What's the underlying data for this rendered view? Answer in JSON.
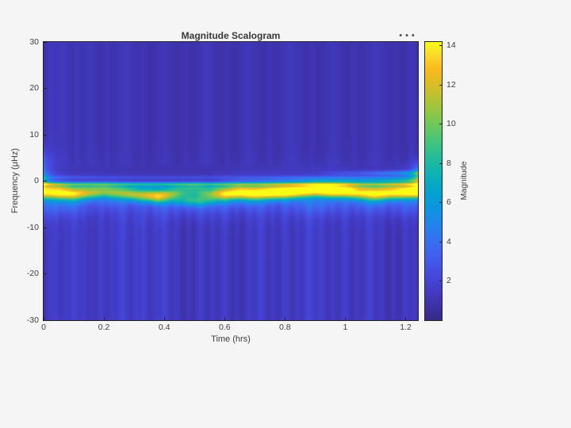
{
  "figure": {
    "background": "#f5f5f5",
    "toolbar": {
      "options_glyph": "•••"
    }
  },
  "chart_data": {
    "type": "heatmap",
    "title": "Magnitude Scalogram",
    "xlabel": "Time (hrs)",
    "ylabel": "Frequency (μHz)",
    "x_range": [
      0,
      1.24
    ],
    "y_range": [
      -30,
      30
    ],
    "x_ticks": [
      0,
      0.2,
      0.4,
      0.6,
      0.8,
      1,
      1.2
    ],
    "x_tick_labels": [
      "0",
      "0.2",
      "0.4",
      "0.6",
      "0.8",
      "1",
      "1.2"
    ],
    "y_ticks": [
      30,
      20,
      10,
      0,
      -10,
      -20,
      -30
    ],
    "y_tick_labels": [
      "30",
      "20",
      "10",
      "0",
      "-10",
      "-20",
      "-30"
    ],
    "grid": false,
    "description": "CWT magnitude scalogram: dark indigo background with faint vertical streaks; a bright wavy yellow-green ridge near -2.5 uHz whose magnitude varies 6-14 over time, a persistent cyan line near -0.7 uHz, extra cyan lines near +0.2 and +1.7 uHz appearing toward the right edge, teal edge-effect glow at t=0 and a bright blob at the right edge.",
    "colorbar": {
      "label": "Magnitude",
      "min": 0,
      "max": 14.2,
      "ticks": [
        2,
        4,
        6,
        8,
        10,
        12,
        14
      ],
      "colormap": "parula",
      "stops": [
        [
          0.0,
          "#352a87"
        ],
        [
          0.05,
          "#3d31a5"
        ],
        [
          0.1,
          "#423ac1"
        ],
        [
          0.15,
          "#4546d8"
        ],
        [
          0.2,
          "#4455e7"
        ],
        [
          0.25,
          "#3e65ef"
        ],
        [
          0.3,
          "#3176f0"
        ],
        [
          0.35,
          "#2186eb"
        ],
        [
          0.4,
          "#1094e1"
        ],
        [
          0.45,
          "#06a0d2"
        ],
        [
          0.5,
          "#08acbf"
        ],
        [
          0.55,
          "#16b6aa"
        ],
        [
          0.6,
          "#2cbe93"
        ],
        [
          0.65,
          "#4ac479"
        ],
        [
          0.7,
          "#6cc75d"
        ],
        [
          0.75,
          "#92c644"
        ],
        [
          0.8,
          "#b8c232"
        ],
        [
          0.85,
          "#dcbc28"
        ],
        [
          0.9,
          "#f9b91e"
        ],
        [
          0.93,
          "#fcc925"
        ],
        [
          0.96,
          "#fbde2c"
        ],
        [
          1.0,
          "#f9fb14"
        ]
      ]
    },
    "features": {
      "base": 0.72,
      "band": {
        "sigma": 1.0,
        "skirt": 0.15,
        "skirt_sigma": 3.0,
        "amp": [
          [
            0,
            11
          ],
          [
            0.05,
            12.5
          ],
          [
            0.1,
            11.5
          ],
          [
            0.15,
            9.5
          ],
          [
            0.2,
            8.5
          ],
          [
            0.26,
            9
          ],
          [
            0.32,
            9.5
          ],
          [
            0.38,
            11
          ],
          [
            0.42,
            8.5
          ],
          [
            0.46,
            6.5
          ],
          [
            0.5,
            6
          ],
          [
            0.55,
            7.5
          ],
          [
            0.6,
            11.5
          ],
          [
            0.65,
            12.5
          ],
          [
            0.7,
            13
          ],
          [
            0.75,
            13.5
          ],
          [
            0.8,
            14
          ],
          [
            0.85,
            13
          ],
          [
            0.9,
            12.5
          ],
          [
            0.95,
            13.8
          ],
          [
            1.0,
            13
          ],
          [
            1.05,
            11.5
          ],
          [
            1.1,
            12.5
          ],
          [
            1.15,
            12
          ],
          [
            1.2,
            12.8
          ],
          [
            1.24,
            14.2
          ]
        ],
        "center": [
          [
            0,
            -2.4
          ],
          [
            0.05,
            -2.5
          ],
          [
            0.1,
            -2.7
          ],
          [
            0.15,
            -2.5
          ],
          [
            0.2,
            -2.3
          ],
          [
            0.26,
            -2.6
          ],
          [
            0.32,
            -3.0
          ],
          [
            0.38,
            -3.2
          ],
          [
            0.42,
            -2.8
          ],
          [
            0.46,
            -2.3
          ],
          [
            0.5,
            -2.1
          ],
          [
            0.55,
            -2.6
          ],
          [
            0.6,
            -2.7
          ],
          [
            0.65,
            -2.5
          ],
          [
            0.7,
            -2.6
          ],
          [
            0.75,
            -2.5
          ],
          [
            0.8,
            -2.4
          ],
          [
            0.85,
            -2.2
          ],
          [
            0.9,
            -2.0
          ],
          [
            0.95,
            -2.1
          ],
          [
            1.0,
            -2.2
          ],
          [
            1.05,
            -2.5
          ],
          [
            1.1,
            -2.7
          ],
          [
            1.15,
            -2.5
          ],
          [
            1.2,
            -2.4
          ],
          [
            1.24,
            -2.3
          ]
        ]
      },
      "lower_arc": {
        "t": 0.5,
        "st": 0.055,
        "f": -4.2,
        "sf": 0.8,
        "amp": 5
      },
      "lines": [
        {
          "f": -0.7,
          "sigma": 0.3,
          "amp": [
            [
              0,
              7
            ],
            [
              0.1,
              6
            ],
            [
              0.25,
              5.6
            ],
            [
              0.4,
              6
            ],
            [
              0.5,
              5.6
            ],
            [
              0.6,
              6
            ],
            [
              0.75,
              6.2
            ],
            [
              0.9,
              6.4
            ],
            [
              1.0,
              6.6
            ],
            [
              1.1,
              7
            ],
            [
              1.24,
              7.4
            ]
          ]
        },
        {
          "f": -1.5,
          "sigma": 0.22,
          "amp": [
            [
              0,
              2.2
            ],
            [
              0.3,
              1.8
            ],
            [
              0.6,
              2.0
            ],
            [
              0.9,
              2.2
            ],
            [
              1.24,
              2.5
            ]
          ]
        },
        {
          "f": 0.15,
          "sigma": 0.32,
          "amp": [
            [
              0,
              0
            ],
            [
              0.55,
              0
            ],
            [
              0.8,
              1.8
            ],
            [
              1.0,
              3.4
            ],
            [
              1.24,
              5.6
            ]
          ]
        },
        {
          "f": 0.8,
          "sigma": 0.25,
          "amp": [
            [
              0,
              1.4
            ],
            [
              0.3,
              1.0
            ],
            [
              0.7,
              1.2
            ],
            [
              1.0,
              1.8
            ],
            [
              1.24,
              2.4
            ]
          ]
        },
        {
          "f": 1.7,
          "sigma": 0.38,
          "amp": [
            [
              0,
              0
            ],
            [
              0.9,
              0
            ],
            [
              1.05,
              1.6
            ],
            [
              1.24,
              4.4
            ]
          ]
        }
      ],
      "edges": {
        "left": {
          "tau": 0.022,
          "components": [
            [
              0.3,
              1.3,
              3.5
            ],
            [
              3.5,
              2.5,
              2.4
            ],
            [
              -5,
              2.5,
              1.5
            ]
          ]
        },
        "right": {
          "tau": 0.018,
          "components": [
            [
              0.9,
              1.4,
              3.5
            ],
            [
              2.3,
              1.8,
              2.0
            ]
          ]
        }
      },
      "texture": {
        "lower_mask": [
          3.2,
          5.0
        ],
        "upper_mask": [
          2.0,
          4.5
        ],
        "lower_streaks": [
          [
            0.015,
            0.7,
            0.01
          ],
          [
            0.04,
            1.0,
            0.012
          ],
          [
            0.07,
            0.6,
            0.008
          ],
          [
            0.1,
            1.2,
            0.015
          ],
          [
            0.135,
            0.8,
            0.01
          ],
          [
            0.16,
            0.5,
            0.008
          ],
          [
            0.19,
            1.0,
            0.012
          ],
          [
            0.225,
            0.7,
            0.009
          ],
          [
            0.26,
            1.1,
            0.014
          ],
          [
            0.3,
            0.35,
            0.06
          ],
          [
            0.305,
            0.6,
            0.008
          ],
          [
            0.33,
            0.9,
            0.011
          ],
          [
            0.37,
            0.7,
            0.009
          ],
          [
            0.4,
            1.2,
            0.013
          ],
          [
            0.44,
            0.8,
            0.01
          ],
          [
            0.48,
            0.6,
            0.008
          ],
          [
            0.52,
            1.0,
            0.012
          ],
          [
            0.56,
            0.8,
            0.01
          ],
          [
            0.6,
            1.1,
            0.013
          ],
          [
            0.64,
            0.6,
            0.008
          ],
          [
            0.68,
            0.9,
            0.011
          ],
          [
            0.72,
            1.2,
            0.014
          ],
          [
            0.76,
            0.7,
            0.009
          ],
          [
            0.8,
            1.0,
            0.012
          ],
          [
            0.84,
            0.6,
            0.008
          ],
          [
            0.88,
            1.1,
            0.013
          ],
          [
            0.9,
            0.35,
            0.07
          ],
          [
            0.92,
            0.8,
            0.01
          ],
          [
            0.96,
            0.6,
            0.008
          ],
          [
            1.0,
            1.0,
            0.012
          ],
          [
            1.04,
            0.7,
            0.009
          ],
          [
            1.08,
            1.2,
            0.014
          ],
          [
            1.12,
            0.8,
            0.01
          ],
          [
            1.16,
            0.6,
            0.008
          ],
          [
            1.2,
            0.9,
            0.011
          ],
          [
            1.23,
            0.7,
            0.009
          ]
        ],
        "upper_streaks": [
          [
            0.02,
            0.4,
            0.012
          ],
          [
            0.06,
            0.55,
            0.025
          ],
          [
            0.11,
            0.35,
            0.009
          ],
          [
            0.155,
            0.5,
            0.022
          ],
          [
            0.21,
            0.4,
            0.01
          ],
          [
            0.27,
            0.55,
            0.026
          ],
          [
            0.33,
            0.35,
            0.009
          ],
          [
            0.4,
            0.5,
            0.022
          ],
          [
            0.47,
            0.4,
            0.01
          ],
          [
            0.54,
            0.55,
            0.025
          ],
          [
            0.61,
            0.35,
            0.009
          ],
          [
            0.68,
            0.5,
            0.022
          ],
          [
            0.75,
            0.4,
            0.01
          ],
          [
            0.82,
            0.55,
            0.026
          ],
          [
            0.89,
            0.35,
            0.009
          ],
          [
            0.96,
            0.5,
            0.022
          ],
          [
            1.03,
            0.4,
            0.01
          ],
          [
            1.1,
            0.55,
            0.025
          ],
          [
            1.17,
            0.35,
            0.009
          ],
          [
            1.22,
            0.45,
            0.01
          ]
        ],
        "blobs": [
          [
            0.07,
            -5.0,
            1.3,
            0.05,
            1.5
          ],
          [
            0.22,
            -4.6,
            0.9,
            0.04,
            1.2
          ],
          [
            0.5,
            -5.2,
            1.4,
            0.07,
            1.8
          ],
          [
            0.68,
            -4.4,
            1.0,
            0.05,
            1.3
          ],
          [
            0.9,
            -5.0,
            1.2,
            0.06,
            1.6
          ],
          [
            1.08,
            -4.6,
            1.1,
            0.05,
            1.4
          ],
          [
            1.2,
            -5.4,
            0.9,
            0.04,
            1.5
          ]
        ]
      }
    }
  }
}
